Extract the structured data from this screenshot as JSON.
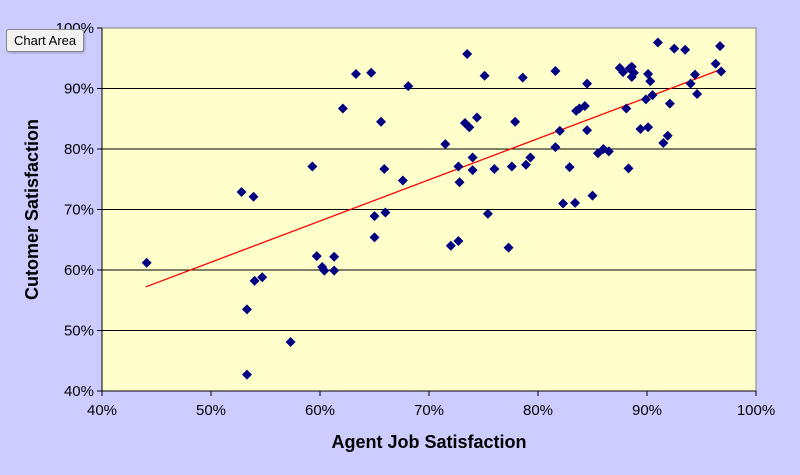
{
  "tooltip": "Chart Area",
  "chart_data": {
    "type": "scatter",
    "title": "",
    "xlabel": "Agent Job Satisfaction",
    "ylabel": "Cutomer Satisfaction",
    "xlim": [
      0.4,
      1.0
    ],
    "ylim": [
      0.4,
      1.0
    ],
    "xticks": [
      "40%",
      "50%",
      "60%",
      "70%",
      "80%",
      "90%",
      "100%"
    ],
    "yticks": [
      "40%",
      "50%",
      "60%",
      "70%",
      "80%",
      "90%",
      "100%"
    ],
    "grid": "horizontal",
    "legend": "none",
    "colors": {
      "plot_bg": "#ffffcc",
      "outer_bg": "#ccccff",
      "marker": "#000080",
      "trendline": "#ff0000"
    },
    "trendline": {
      "x": [
        0.44,
        0.97
      ],
      "y": [
        0.572,
        0.933
      ]
    },
    "points": [
      [
        0.441,
        0.612
      ],
      [
        0.528,
        0.729
      ],
      [
        0.539,
        0.721
      ],
      [
        0.533,
        0.535
      ],
      [
        0.533,
        0.427
      ],
      [
        0.54,
        0.582
      ],
      [
        0.547,
        0.588
      ],
      [
        0.573,
        0.481
      ],
      [
        0.593,
        0.771
      ],
      [
        0.597,
        0.623
      ],
      [
        0.602,
        0.605
      ],
      [
        0.604,
        0.599
      ],
      [
        0.613,
        0.622
      ],
      [
        0.613,
        0.599
      ],
      [
        0.621,
        0.867
      ],
      [
        0.633,
        0.924
      ],
      [
        0.647,
        0.926
      ],
      [
        0.65,
        0.689
      ],
      [
        0.65,
        0.654
      ],
      [
        0.656,
        0.845
      ],
      [
        0.659,
        0.767
      ],
      [
        0.66,
        0.695
      ],
      [
        0.676,
        0.748
      ],
      [
        0.681,
        0.904
      ],
      [
        0.715,
        0.808
      ],
      [
        0.72,
        0.64
      ],
      [
        0.727,
        0.771
      ],
      [
        0.727,
        0.648
      ],
      [
        0.728,
        0.745
      ],
      [
        0.733,
        0.843
      ],
      [
        0.735,
        0.957
      ],
      [
        0.737,
        0.836
      ],
      [
        0.74,
        0.786
      ],
      [
        0.74,
        0.765
      ],
      [
        0.744,
        0.852
      ],
      [
        0.751,
        0.921
      ],
      [
        0.754,
        0.693
      ],
      [
        0.76,
        0.767
      ],
      [
        0.773,
        0.637
      ],
      [
        0.776,
        0.771
      ],
      [
        0.779,
        0.845
      ],
      [
        0.786,
        0.918
      ],
      [
        0.789,
        0.774
      ],
      [
        0.793,
        0.786
      ],
      [
        0.816,
        0.929
      ],
      [
        0.816,
        0.803
      ],
      [
        0.82,
        0.83
      ],
      [
        0.823,
        0.71
      ],
      [
        0.829,
        0.77
      ],
      [
        0.834,
        0.711
      ],
      [
        0.835,
        0.863
      ],
      [
        0.838,
        0.867
      ],
      [
        0.843,
        0.871
      ],
      [
        0.845,
        0.908
      ],
      [
        0.845,
        0.831
      ],
      [
        0.85,
        0.723
      ],
      [
        0.855,
        0.793
      ],
      [
        0.86,
        0.8
      ],
      [
        0.865,
        0.796
      ],
      [
        0.875,
        0.934
      ],
      [
        0.878,
        0.927
      ],
      [
        0.881,
        0.867
      ],
      [
        0.883,
        0.768
      ],
      [
        0.884,
        0.933
      ],
      [
        0.886,
        0.919
      ],
      [
        0.886,
        0.936
      ],
      [
        0.888,
        0.926
      ],
      [
        0.894,
        0.833
      ],
      [
        0.899,
        0.882
      ],
      [
        0.901,
        0.924
      ],
      [
        0.901,
        0.836
      ],
      [
        0.903,
        0.912
      ],
      [
        0.905,
        0.889
      ],
      [
        0.91,
        0.976
      ],
      [
        0.915,
        0.81
      ],
      [
        0.919,
        0.822
      ],
      [
        0.921,
        0.875
      ],
      [
        0.925,
        0.966
      ],
      [
        0.935,
        0.964
      ],
      [
        0.94,
        0.908
      ],
      [
        0.944,
        0.923
      ],
      [
        0.946,
        0.891
      ],
      [
        0.963,
        0.941
      ],
      [
        0.967,
        0.97
      ],
      [
        0.968,
        0.928
      ]
    ]
  }
}
